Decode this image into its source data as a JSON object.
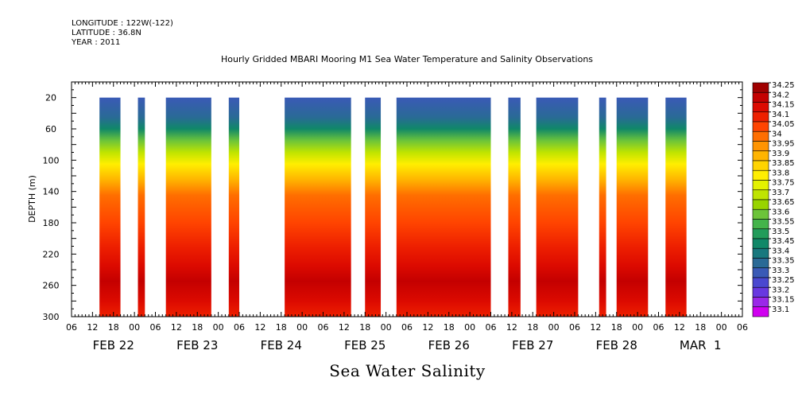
{
  "header": {
    "longitude": "LONGITUDE : 122W(-122)",
    "latitude": "LATITUDE : 36.8N",
    "year": "YEAR : 2011"
  },
  "chart_data": {
    "type": "heatmap",
    "title": "Hourly Gridded MBARI Mooring M1 Sea Water Temperature and Salinity Observations",
    "xlabel": "Sea Water Salinity",
    "ylabel": "DEPTH (m)",
    "x_unit": "hours since 2011-02-21T06:00",
    "xlim": [
      0,
      192
    ],
    "ylim": [
      300,
      0
    ],
    "y_ticks": [
      20,
      60,
      100,
      140,
      180,
      220,
      260,
      300
    ],
    "x_hour_ticks": [
      {
        "h": 0,
        "label": "06"
      },
      {
        "h": 6,
        "label": "12"
      },
      {
        "h": 12,
        "label": "18"
      },
      {
        "h": 18,
        "label": "00"
      },
      {
        "h": 24,
        "label": "06"
      },
      {
        "h": 30,
        "label": "12"
      },
      {
        "h": 36,
        "label": "18"
      },
      {
        "h": 42,
        "label": "00"
      },
      {
        "h": 48,
        "label": "06"
      },
      {
        "h": 54,
        "label": "12"
      },
      {
        "h": 60,
        "label": "18"
      },
      {
        "h": 66,
        "label": "00"
      },
      {
        "h": 72,
        "label": "06"
      },
      {
        "h": 78,
        "label": "12"
      },
      {
        "h": 84,
        "label": "18"
      },
      {
        "h": 90,
        "label": "00"
      },
      {
        "h": 96,
        "label": "06"
      },
      {
        "h": 102,
        "label": "12"
      },
      {
        "h": 108,
        "label": "18"
      },
      {
        "h": 114,
        "label": "00"
      },
      {
        "h": 120,
        "label": "06"
      },
      {
        "h": 126,
        "label": "12"
      },
      {
        "h": 132,
        "label": "18"
      },
      {
        "h": 138,
        "label": "00"
      },
      {
        "h": 144,
        "label": "06"
      },
      {
        "h": 150,
        "label": "12"
      },
      {
        "h": 156,
        "label": "18"
      },
      {
        "h": 162,
        "label": "00"
      },
      {
        "h": 168,
        "label": "06"
      },
      {
        "h": 174,
        "label": "12"
      },
      {
        "h": 180,
        "label": "18"
      },
      {
        "h": 186,
        "label": "00"
      },
      {
        "h": 192,
        "label": "06"
      }
    ],
    "x_day_labels": [
      {
        "h": 12,
        "label": "FEB 22"
      },
      {
        "h": 36,
        "label": "FEB 23"
      },
      {
        "h": 60,
        "label": "FEB 24"
      },
      {
        "h": 84,
        "label": "FEB 25"
      },
      {
        "h": 108,
        "label": "FEB 26"
      },
      {
        "h": 132,
        "label": "FEB 27"
      },
      {
        "h": 156,
        "label": "FEB 28"
      },
      {
        "h": 180,
        "label": "MAR  1"
      }
    ],
    "data_segments_hours": [
      [
        8,
        14
      ],
      [
        19,
        21
      ],
      [
        27,
        40
      ],
      [
        45,
        48
      ],
      [
        61,
        80
      ],
      [
        84,
        88.5
      ],
      [
        93,
        120
      ],
      [
        125,
        128.5
      ],
      [
        133,
        145
      ],
      [
        151,
        153
      ],
      [
        156,
        165
      ],
      [
        170,
        176
      ]
    ],
    "depth_profile": [
      {
        "depth": 20,
        "value": 33.33
      },
      {
        "depth": 45,
        "value": 33.38
      },
      {
        "depth": 60,
        "value": 33.48
      },
      {
        "depth": 75,
        "value": 33.6
      },
      {
        "depth": 90,
        "value": 33.72
      },
      {
        "depth": 105,
        "value": 33.83
      },
      {
        "depth": 125,
        "value": 33.93
      },
      {
        "depth": 145,
        "value": 34.01
      },
      {
        "depth": 180,
        "value": 34.05
      },
      {
        "depth": 210,
        "value": 34.1
      },
      {
        "depth": 235,
        "value": 34.15
      },
      {
        "depth": 255,
        "value": 34.23
      },
      {
        "depth": 280,
        "value": 34.18
      },
      {
        "depth": 300,
        "value": 34.14
      }
    ],
    "colorbar": {
      "levels": [
        "34.25",
        "34.2",
        "34.15",
        "34.1",
        "34.05",
        "34",
        "33.95",
        "33.9",
        "33.85",
        "33.8",
        "33.75",
        "33.7",
        "33.65",
        "33.6",
        "33.55",
        "33.5",
        "33.45",
        "33.4",
        "33.35",
        "33.3",
        "33.25",
        "33.2",
        "33.15",
        "33.1"
      ],
      "colors": [
        "#a00000",
        "#c40000",
        "#dc0a00",
        "#ee2000",
        "#ff4400",
        "#ff6e00",
        "#ff9400",
        "#ffb400",
        "#ffd400",
        "#ffee00",
        "#e4f200",
        "#bfe400",
        "#98d400",
        "#6cc43a",
        "#44b44a",
        "#229c5a",
        "#108868",
        "#18787e",
        "#2a6a96",
        "#3a5ab6",
        "#4a48d0",
        "#6838e0",
        "#9a28e8",
        "#d000f0"
      ]
    }
  }
}
